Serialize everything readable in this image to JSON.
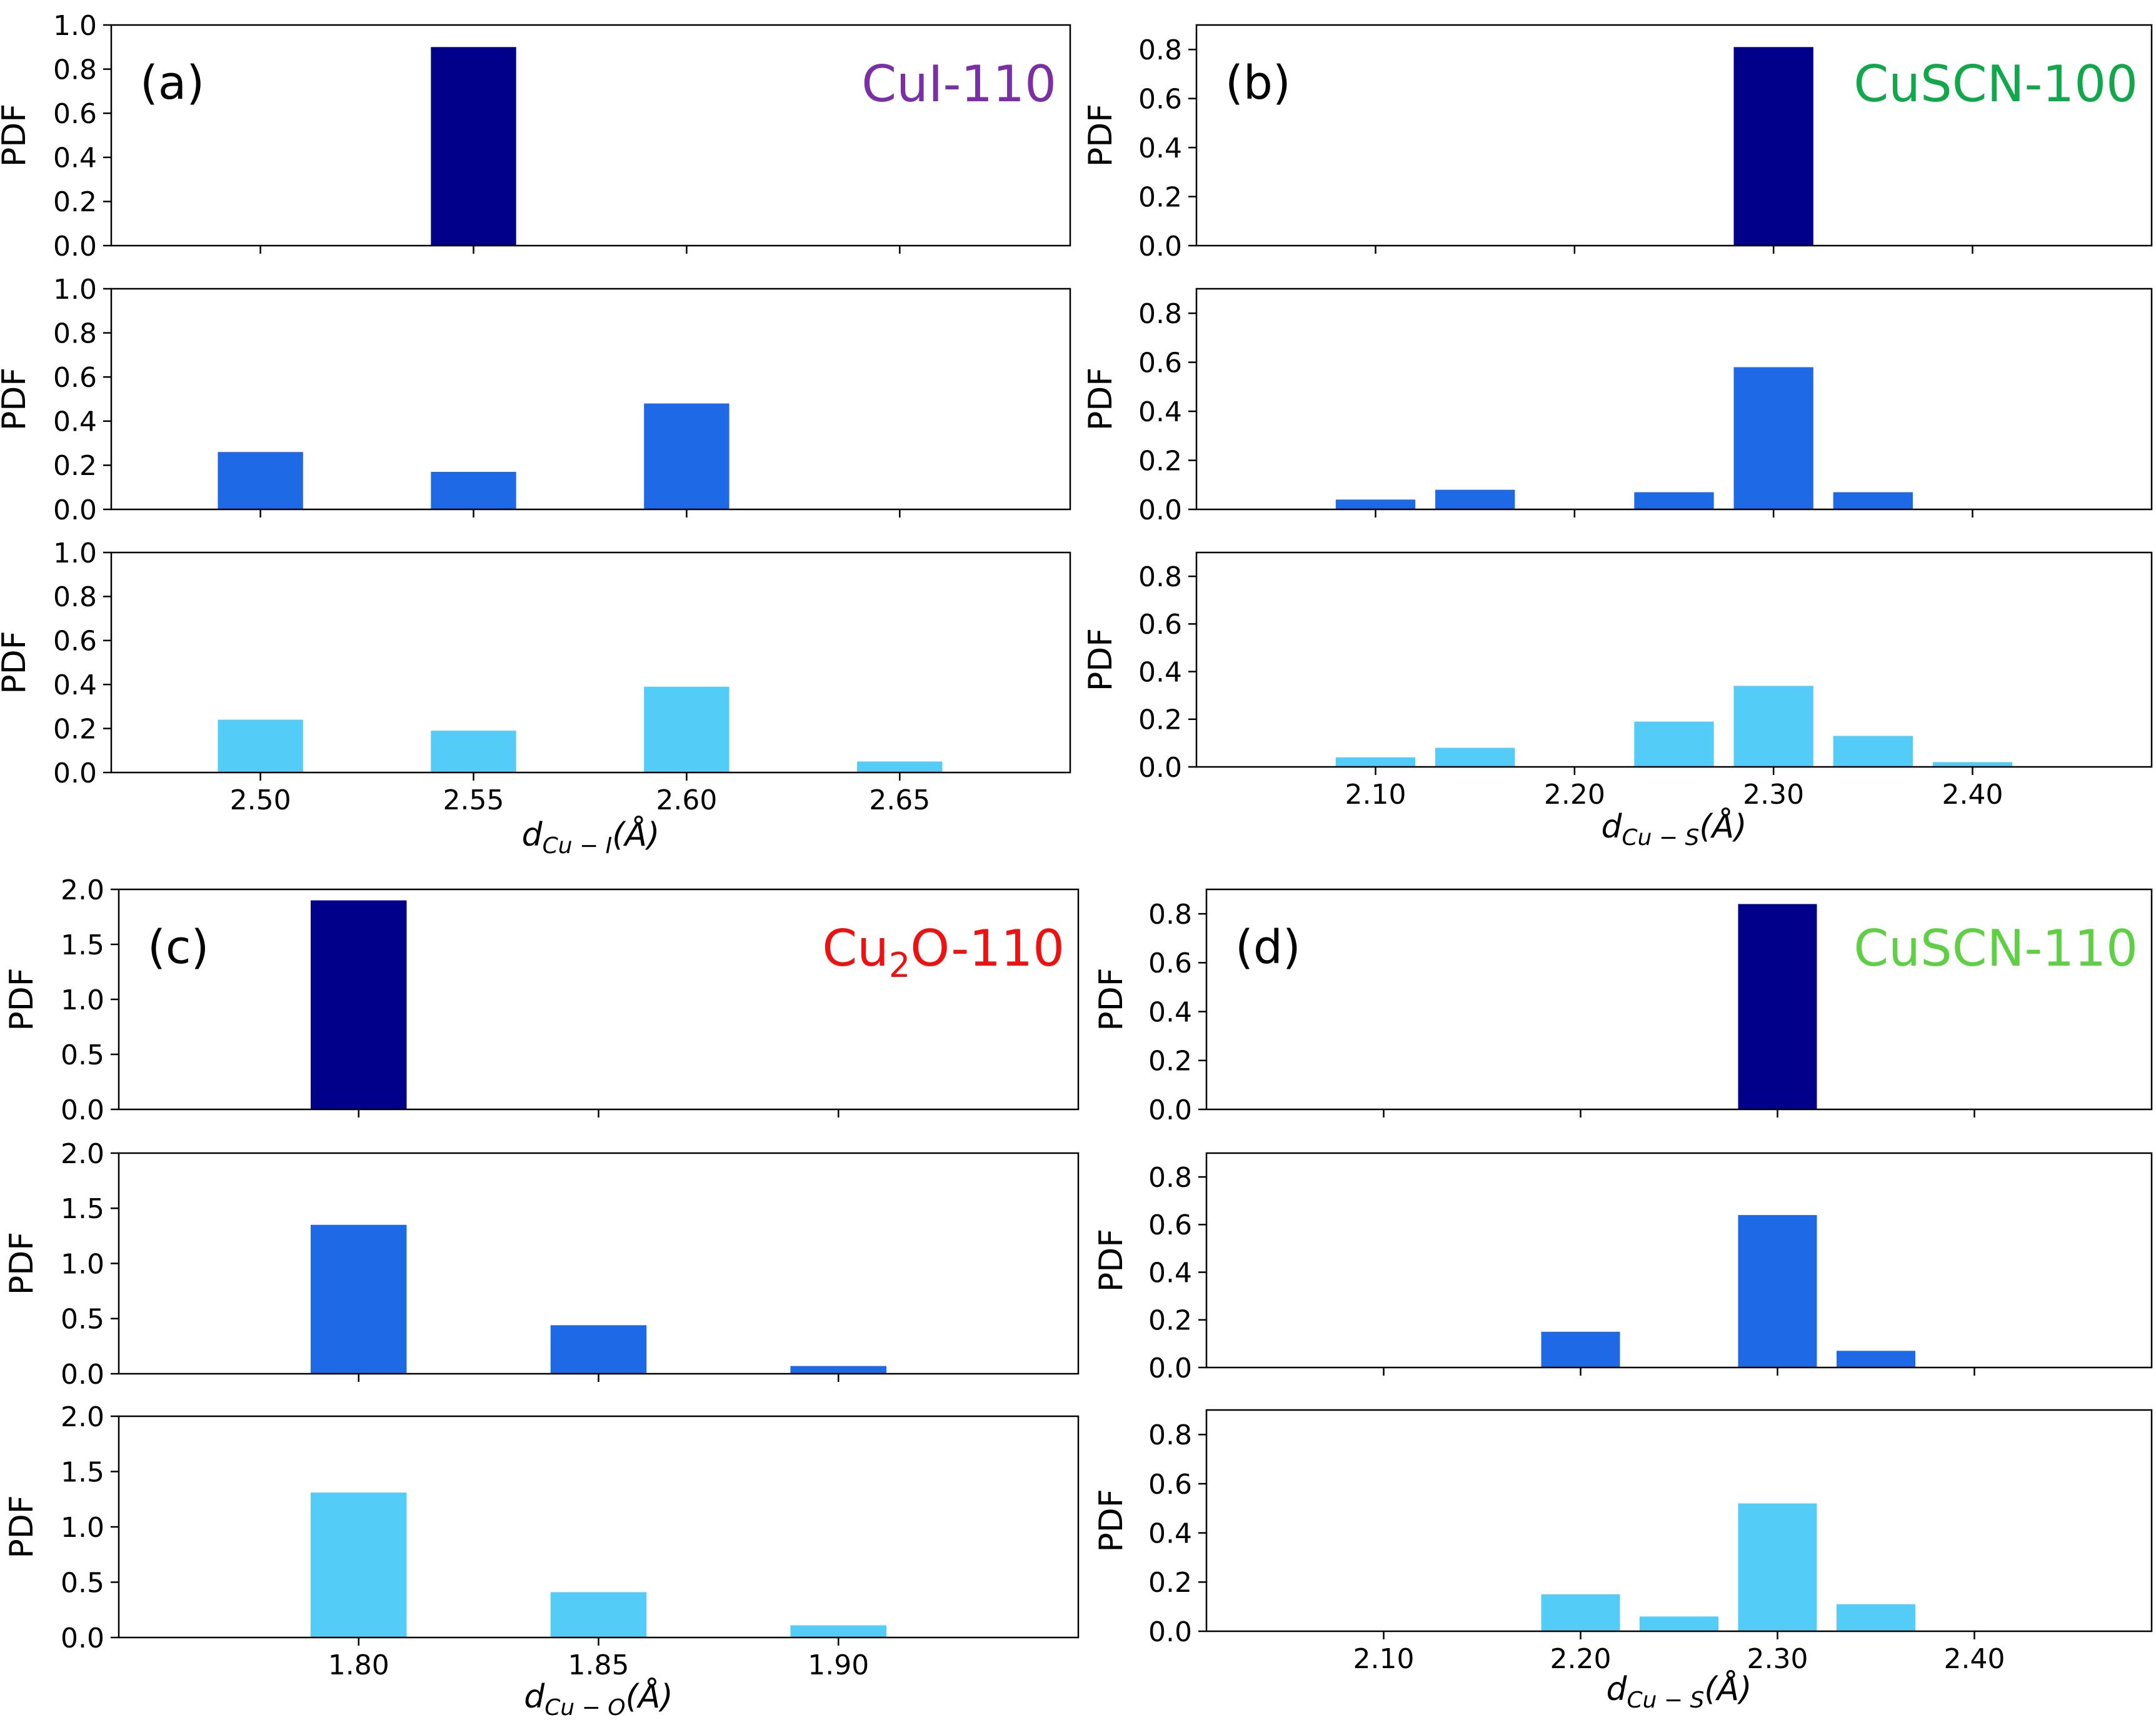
{
  "figure": {
    "bar_colors": {
      "top": "#00008b",
      "middle": "#1e6ae6",
      "bottom": "#54ccf8"
    }
  },
  "chart_data": [
    {
      "panel": "a",
      "type": "bar",
      "panel_label": "(a)",
      "panel_title": "CuI-110",
      "title_color": "#7b2fa6",
      "title_parts": [
        {
          "text": "CuI-110",
          "sub": false
        }
      ],
      "xlabel": {
        "base": "d",
        "sub": "Cu − I",
        "suffix": "(Å)"
      },
      "xlim": [
        2.465,
        2.69
      ],
      "xticks": [
        2.5,
        2.55,
        2.6,
        2.65
      ],
      "xtick_labels": [
        "2.50",
        "2.55",
        "2.60",
        "2.65"
      ],
      "bar_width": 0.02,
      "ylabel": "PDF",
      "subplots": [
        {
          "ylim": [
            0,
            1.0
          ],
          "yticks": [
            0,
            0.2,
            0.4,
            0.6,
            0.8,
            1.0
          ],
          "ytick_labels": [
            "0.0",
            "0.2",
            "0.4",
            "0.6",
            "0.8",
            "1.0"
          ],
          "color": "#00008b",
          "x": [
            2.55
          ],
          "values": [
            0.9
          ]
        },
        {
          "ylim": [
            0,
            1.0
          ],
          "yticks": [
            0,
            0.2,
            0.4,
            0.6,
            0.8,
            1.0
          ],
          "ytick_labels": [
            "0.0",
            "0.2",
            "0.4",
            "0.6",
            "0.8",
            "1.0"
          ],
          "color": "#1e6ae6",
          "x": [
            2.5,
            2.55,
            2.6
          ],
          "values": [
            0.26,
            0.17,
            0.48
          ]
        },
        {
          "ylim": [
            0,
            1.0
          ],
          "yticks": [
            0,
            0.2,
            0.4,
            0.6,
            0.8,
            1.0
          ],
          "ytick_labels": [
            "0.0",
            "0.2",
            "0.4",
            "0.6",
            "0.8",
            "1.0"
          ],
          "color": "#54ccf8",
          "x": [
            2.5,
            2.55,
            2.6,
            2.65
          ],
          "values": [
            0.24,
            0.19,
            0.39,
            0.05
          ]
        }
      ]
    },
    {
      "panel": "b",
      "type": "bar",
      "panel_label": "(b)",
      "panel_title": "CuSCN-100",
      "title_color": "#10a84a",
      "title_parts": [
        {
          "text": "CuSCN-100",
          "sub": false
        }
      ],
      "xlabel": {
        "base": "d",
        "sub": "Cu − S",
        "suffix": "(Å)"
      },
      "xlim": [
        2.01,
        2.49
      ],
      "xticks": [
        2.1,
        2.2,
        2.3,
        2.4
      ],
      "xtick_labels": [
        "2.10",
        "2.20",
        "2.30",
        "2.40"
      ],
      "bar_width": 0.04,
      "ylabel": "PDF",
      "subplots": [
        {
          "ylim": [
            0,
            0.9
          ],
          "yticks": [
            0,
            0.2,
            0.4,
            0.6,
            0.8
          ],
          "ytick_labels": [
            "0.0",
            "0.2",
            "0.4",
            "0.6",
            "0.8"
          ],
          "color": "#00008b",
          "x": [
            2.3
          ],
          "values": [
            0.81
          ]
        },
        {
          "ylim": [
            0,
            0.9
          ],
          "yticks": [
            0,
            0.2,
            0.4,
            0.6,
            0.8
          ],
          "ytick_labels": [
            "0.0",
            "0.2",
            "0.4",
            "0.6",
            "0.8"
          ],
          "color": "#1e6ae6",
          "x": [
            2.1,
            2.15,
            2.25,
            2.3,
            2.35
          ],
          "values": [
            0.04,
            0.08,
            0.07,
            0.58,
            0.07
          ]
        },
        {
          "ylim": [
            0,
            0.9
          ],
          "yticks": [
            0,
            0.2,
            0.4,
            0.6,
            0.8
          ],
          "ytick_labels": [
            "0.0",
            "0.2",
            "0.4",
            "0.6",
            "0.8"
          ],
          "color": "#54ccf8",
          "x": [
            2.1,
            2.15,
            2.25,
            2.3,
            2.35,
            2.4
          ],
          "values": [
            0.04,
            0.08,
            0.19,
            0.34,
            0.13,
            0.02
          ]
        }
      ]
    },
    {
      "panel": "c",
      "type": "bar",
      "panel_label": "(c)",
      "panel_title": "Cu2O-110",
      "title_color": "#ee1111",
      "title_parts": [
        {
          "text": "Cu",
          "sub": false
        },
        {
          "text": "2",
          "sub": true
        },
        {
          "text": "O-110",
          "sub": false
        }
      ],
      "xlabel": {
        "base": "d",
        "sub": "Cu − O",
        "suffix": "(Å)"
      },
      "xlim": [
        1.75,
        1.95
      ],
      "xticks": [
        1.8,
        1.85,
        1.9
      ],
      "xtick_labels": [
        "1.80",
        "1.85",
        "1.90"
      ],
      "bar_width": 0.02,
      "ylabel": "PDF",
      "subplots": [
        {
          "ylim": [
            0,
            2.0
          ],
          "yticks": [
            0,
            0.5,
            1.0,
            1.5,
            2.0
          ],
          "ytick_labels": [
            "0.0",
            "0.5",
            "1.0",
            "1.5",
            "2.0"
          ],
          "color": "#00008b",
          "x": [
            1.8
          ],
          "values": [
            1.9
          ]
        },
        {
          "ylim": [
            0,
            2.0
          ],
          "yticks": [
            0,
            0.5,
            1.0,
            1.5,
            2.0
          ],
          "ytick_labels": [
            "0.0",
            "0.5",
            "1.0",
            "1.5",
            "2.0"
          ],
          "color": "#1e6ae6",
          "x": [
            1.8,
            1.85,
            1.9
          ],
          "values": [
            1.35,
            0.44,
            0.07
          ]
        },
        {
          "ylim": [
            0,
            2.0
          ],
          "yticks": [
            0,
            0.5,
            1.0,
            1.5,
            2.0
          ],
          "ytick_labels": [
            "0.0",
            "0.5",
            "1.0",
            "1.5",
            "2.0"
          ],
          "color": "#54ccf8",
          "x": [
            1.8,
            1.85,
            1.9
          ],
          "values": [
            1.31,
            0.41,
            0.11
          ]
        }
      ]
    },
    {
      "panel": "d",
      "type": "bar",
      "panel_label": "(d)",
      "panel_title": "CuSCN-110",
      "title_color": "#5fd044",
      "title_parts": [
        {
          "text": "CuSCN-110",
          "sub": false
        }
      ],
      "xlabel": {
        "base": "d",
        "sub": "Cu − S",
        "suffix": "(Å)"
      },
      "xlim": [
        2.01,
        2.49
      ],
      "xticks": [
        2.1,
        2.2,
        2.3,
        2.4
      ],
      "xtick_labels": [
        "2.10",
        "2.20",
        "2.30",
        "2.40"
      ],
      "bar_width": 0.04,
      "ylabel": "PDF",
      "subplots": [
        {
          "ylim": [
            0,
            0.9
          ],
          "yticks": [
            0,
            0.2,
            0.4,
            0.6,
            0.8
          ],
          "ytick_labels": [
            "0.0",
            "0.2",
            "0.4",
            "0.6",
            "0.8"
          ],
          "color": "#00008b",
          "x": [
            2.3
          ],
          "values": [
            0.84
          ]
        },
        {
          "ylim": [
            0,
            0.9
          ],
          "yticks": [
            0,
            0.2,
            0.4,
            0.6,
            0.8
          ],
          "ytick_labels": [
            "0.0",
            "0.2",
            "0.4",
            "0.6",
            "0.8"
          ],
          "color": "#1e6ae6",
          "x": [
            2.2,
            2.3,
            2.35
          ],
          "values": [
            0.15,
            0.64,
            0.07
          ]
        },
        {
          "ylim": [
            0,
            0.9
          ],
          "yticks": [
            0,
            0.2,
            0.4,
            0.6,
            0.8
          ],
          "ytick_labels": [
            "0.0",
            "0.2",
            "0.4",
            "0.6",
            "0.8"
          ],
          "color": "#54ccf8",
          "x": [
            2.2,
            2.25,
            2.3,
            2.35
          ],
          "values": [
            0.15,
            0.06,
            0.52,
            0.11
          ]
        }
      ]
    }
  ]
}
